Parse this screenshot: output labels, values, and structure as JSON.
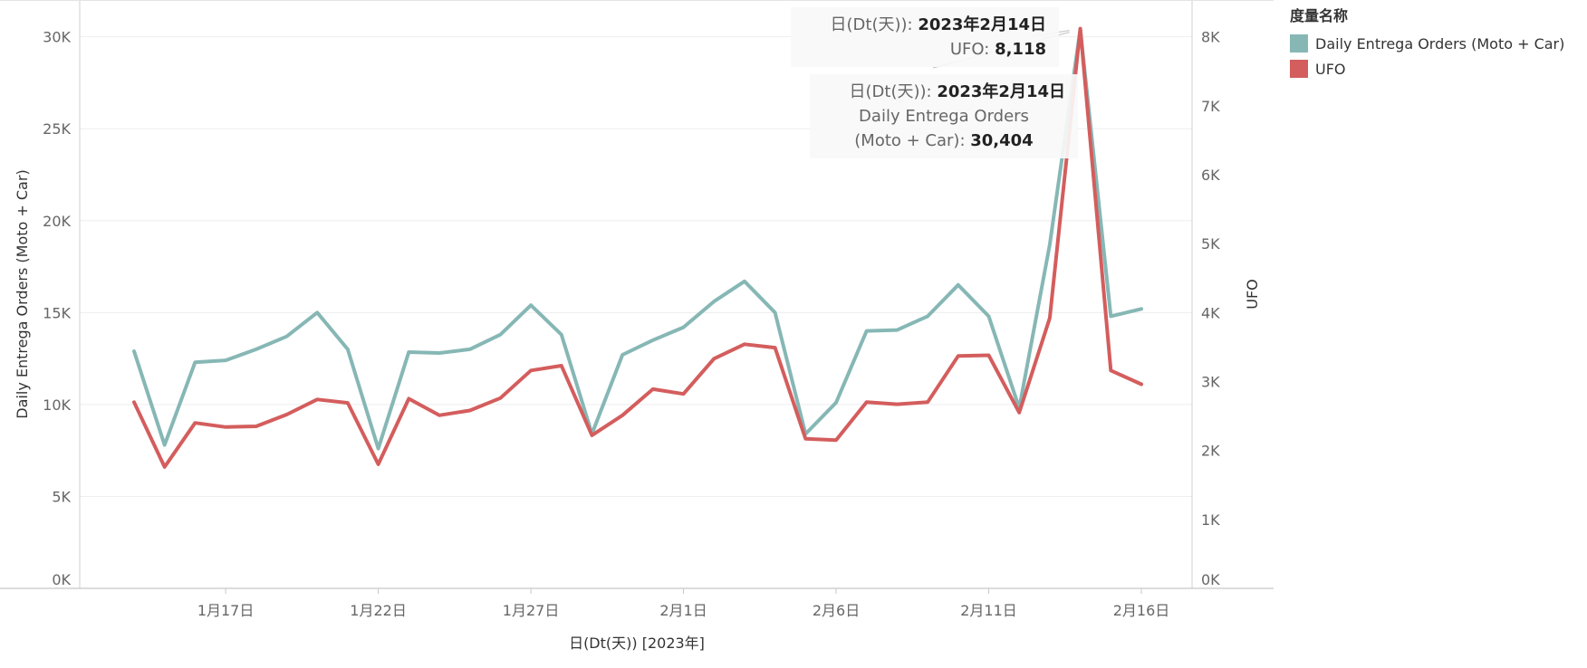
{
  "chart_data": {
    "type": "line",
    "xlabel": "日(Dt(天)) [2023年]",
    "x_tick_labels": [
      "1月17日",
      "1月22日",
      "1月27日",
      "2月1日",
      "2月6日",
      "2月11日",
      "2月16日"
    ],
    "x_tick_index": [
      3,
      8,
      13,
      18,
      23,
      28,
      33
    ],
    "x": [
      "2023-01-14",
      "2023-01-15",
      "2023-01-16",
      "2023-01-17",
      "2023-01-18",
      "2023-01-19",
      "2023-01-20",
      "2023-01-21",
      "2023-01-22",
      "2023-01-23",
      "2023-01-24",
      "2023-01-25",
      "2023-01-26",
      "2023-01-27",
      "2023-01-28",
      "2023-01-29",
      "2023-01-30",
      "2023-01-31",
      "2023-02-01",
      "2023-02-02",
      "2023-02-03",
      "2023-02-04",
      "2023-02-05",
      "2023-02-06",
      "2023-02-07",
      "2023-02-08",
      "2023-02-09",
      "2023-02-10",
      "2023-02-11",
      "2023-02-12",
      "2023-02-13",
      "2023-02-14",
      "2023-02-15",
      "2023-02-16"
    ],
    "left_axis": {
      "label": "Daily Entrega Orders (Moto + Car)",
      "ylim": [
        0,
        32000
      ],
      "ticks": [
        0,
        5000,
        10000,
        15000,
        20000,
        25000,
        30000
      ],
      "tick_labels": [
        "0K",
        "5K",
        "10K",
        "15K",
        "20K",
        "25K",
        "30K"
      ]
    },
    "right_axis": {
      "label": "UFO",
      "ylim": [
        0,
        8533
      ],
      "ticks": [
        0,
        1000,
        2000,
        3000,
        4000,
        5000,
        6000,
        7000,
        8000
      ],
      "tick_labels": [
        "0K",
        "1K",
        "2K",
        "3K",
        "4K",
        "5K",
        "6K",
        "7K",
        "8K"
      ]
    },
    "series": [
      {
        "name": "Daily Entrega Orders (Moto + Car)",
        "axis": "left",
        "color": "#86b7b5",
        "values": [
          12900,
          7800,
          12300,
          12400,
          13000,
          13700,
          15000,
          13000,
          7600,
          12850,
          12800,
          13000,
          13800,
          15400,
          13800,
          8400,
          12700,
          13500,
          14200,
          15600,
          16700,
          15000,
          8400,
          10100,
          14000,
          14050,
          14800,
          16500,
          14800,
          9800,
          18700,
          30404,
          14800,
          15200
        ]
      },
      {
        "name": "UFO",
        "axis": "right",
        "color": "#d45d5d",
        "values": [
          2700,
          1760,
          2400,
          2340,
          2350,
          2520,
          2740,
          2690,
          1800,
          2750,
          2510,
          2580,
          2760,
          3160,
          3230,
          2220,
          2510,
          2890,
          2820,
          3330,
          3540,
          3490,
          2170,
          2150,
          2700,
          2670,
          2700,
          3370,
          3380,
          2550,
          3920,
          8118,
          3160,
          2960
        ]
      }
    ],
    "legend": {
      "title": "度量名称",
      "position": "top-right",
      "items": [
        "Daily Entrega Orders (Moto + Car)",
        "UFO"
      ]
    },
    "grid": true
  },
  "tooltip_ufo": {
    "date_label": "日(Dt(天)):",
    "date_value": "2023年2月14日",
    "metric_label": "UFO:",
    "metric_value": "8,118"
  },
  "tooltip_orders": {
    "date_label": "日(Dt(天)):",
    "date_value": "2023年2月14日",
    "metric_label_line1": "Daily Entrega Orders",
    "metric_label_line2": "(Moto + Car):",
    "metric_value": "30,404"
  }
}
